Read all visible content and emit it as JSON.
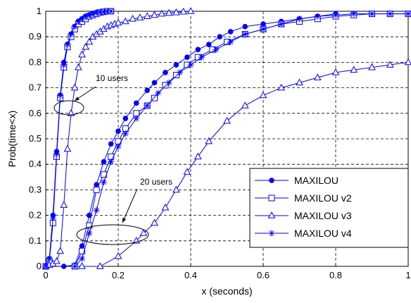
{
  "chart_data": {
    "type": "line",
    "title": "",
    "xlabel": "x (seconds)",
    "ylabel": "Prob(time<x)",
    "xlim": [
      0,
      1
    ],
    "ylim": [
      0,
      1
    ],
    "x_ticks": [
      0,
      0.2,
      0.4,
      0.6,
      0.8,
      1
    ],
    "x_tick_labels": [
      "0",
      "0.2",
      "0.4",
      "0.6",
      "0.8",
      "1"
    ],
    "y_ticks": [
      0,
      0.1,
      0.2,
      0.3,
      0.4,
      0.5,
      0.6,
      0.7,
      0.8,
      0.9,
      1
    ],
    "y_tick_labels": [
      "0",
      "0.1",
      "0.2",
      "0.3",
      "0.4",
      "0.5",
      "0.6",
      "0.7",
      "0.8",
      "0.9",
      "1"
    ],
    "grid": true,
    "legend_position": "bottom-right",
    "line_color": "#0000ff",
    "annotations": [
      {
        "text": "10 users",
        "x": 0.148,
        "y": 0.745
      },
      {
        "text": "20 users",
        "x": 0.253,
        "y": 0.325
      }
    ],
    "series": [
      {
        "name": "MAXILOU",
        "group": "10 users",
        "marker": "circle-filled",
        "x": [
          0,
          0.01,
          0.02,
          0.03,
          0.04,
          0.05,
          0.06,
          0.07,
          0.08,
          0.09,
          0.1,
          0.11,
          0.12,
          0.13,
          0.14,
          0.15,
          0.16,
          0.17,
          0.18
        ],
        "y": [
          0,
          0.03,
          0.2,
          0.45,
          0.67,
          0.8,
          0.87,
          0.91,
          0.94,
          0.96,
          0.97,
          0.98,
          0.985,
          0.99,
          0.995,
          0.997,
          0.998,
          1.0,
          1.0
        ]
      },
      {
        "name": "MAXILOU v2",
        "group": "10 users",
        "marker": "square",
        "x": [
          0,
          0.01,
          0.02,
          0.03,
          0.04,
          0.05,
          0.06,
          0.07,
          0.08,
          0.09,
          0.1,
          0.11,
          0.12,
          0.13,
          0.14,
          0.15,
          0.16,
          0.17,
          0.18
        ],
        "y": [
          0,
          0.02,
          0.17,
          0.43,
          0.66,
          0.78,
          0.86,
          0.9,
          0.93,
          0.95,
          0.96,
          0.97,
          0.98,
          0.985,
          0.99,
          0.995,
          0.998,
          1.0,
          1.0
        ]
      },
      {
        "name": "MAXILOU v3",
        "group": "10 users",
        "marker": "triangle",
        "x": [
          0,
          0.01,
          0.02,
          0.03,
          0.04,
          0.05,
          0.06,
          0.07,
          0.08,
          0.09,
          0.1,
          0.11,
          0.12,
          0.13,
          0.14,
          0.15,
          0.16,
          0.17,
          0.18,
          0.19,
          0.2,
          0.22,
          0.24,
          0.26,
          0.28,
          0.3,
          0.32,
          0.34,
          0.36,
          0.38,
          0.4
        ],
        "y": [
          0,
          0.005,
          0.01,
          0.02,
          0.06,
          0.24,
          0.46,
          0.6,
          0.7,
          0.78,
          0.83,
          0.86,
          0.88,
          0.9,
          0.91,
          0.92,
          0.93,
          0.94,
          0.945,
          0.95,
          0.955,
          0.96,
          0.97,
          0.975,
          0.98,
          0.985,
          0.99,
          0.993,
          0.995,
          0.998,
          1.0
        ]
      },
      {
        "name": "MAXILOU v4",
        "group": "10 users",
        "marker": "star",
        "x": [
          0,
          0.01,
          0.02,
          0.03,
          0.04,
          0.05,
          0.06,
          0.07,
          0.08,
          0.09,
          0.1,
          0.11,
          0.12,
          0.13,
          0.14,
          0.15,
          0.16,
          0.17,
          0.18
        ],
        "y": [
          0,
          0.03,
          0.19,
          0.44,
          0.67,
          0.79,
          0.87,
          0.91,
          0.94,
          0.96,
          0.97,
          0.98,
          0.985,
          0.99,
          0.995,
          0.997,
          0.998,
          1.0,
          1.0
        ]
      },
      {
        "name": "MAXILOU",
        "group": "20 users",
        "marker": "circle-filled",
        "x": [
          0.05,
          0.08,
          0.1,
          0.12,
          0.14,
          0.16,
          0.18,
          0.2,
          0.22,
          0.25,
          0.28,
          0.3,
          0.33,
          0.36,
          0.39,
          0.42,
          0.45,
          0.48,
          0.51,
          0.55,
          0.6,
          0.65,
          0.7,
          0.75,
          0.8
        ],
        "y": [
          0.0,
          0.005,
          0.08,
          0.2,
          0.32,
          0.41,
          0.48,
          0.53,
          0.58,
          0.64,
          0.69,
          0.72,
          0.76,
          0.79,
          0.82,
          0.85,
          0.87,
          0.9,
          0.92,
          0.94,
          0.95,
          0.96,
          0.97,
          0.98,
          0.99
        ]
      },
      {
        "name": "MAXILOU v2",
        "group": "20 users",
        "marker": "square",
        "x": [
          0.08,
          0.1,
          0.12,
          0.14,
          0.16,
          0.18,
          0.2,
          0.22,
          0.25,
          0.28,
          0.3,
          0.33,
          0.36,
          0.39,
          0.42,
          0.46,
          0.5,
          0.55,
          0.6,
          0.65,
          0.7,
          0.75,
          0.8,
          0.85,
          0.9,
          0.95,
          1.0
        ],
        "y": [
          0.0,
          0.06,
          0.16,
          0.3,
          0.36,
          0.43,
          0.49,
          0.54,
          0.6,
          0.63,
          0.66,
          0.71,
          0.75,
          0.79,
          0.82,
          0.85,
          0.88,
          0.91,
          0.93,
          0.95,
          0.96,
          0.97,
          0.98,
          0.985,
          0.99,
          0.99,
          0.99
        ]
      },
      {
        "name": "MAXILOU v3",
        "group": "20 users",
        "marker": "triangle",
        "x": [
          0.1,
          0.15,
          0.2,
          0.25,
          0.27,
          0.3,
          0.33,
          0.36,
          0.39,
          0.42,
          0.45,
          0.5,
          0.55,
          0.6,
          0.65,
          0.7,
          0.75,
          0.8,
          0.85,
          0.9,
          0.95,
          1.0
        ],
        "y": [
          0.0,
          0.0,
          0.04,
          0.1,
          0.13,
          0.17,
          0.23,
          0.3,
          0.37,
          0.43,
          0.49,
          0.57,
          0.63,
          0.67,
          0.7,
          0.72,
          0.74,
          0.76,
          0.77,
          0.78,
          0.79,
          0.8
        ]
      },
      {
        "name": "MAXILOU v4",
        "group": "20 users",
        "marker": "star",
        "x": [
          0.08,
          0.1,
          0.12,
          0.14,
          0.16,
          0.18,
          0.2,
          0.22,
          0.25,
          0.28,
          0.31,
          0.34,
          0.37,
          0.4,
          0.43,
          0.47,
          0.51,
          0.55,
          0.6,
          0.65,
          0.7,
          0.75,
          0.8,
          0.85,
          0.9,
          0.95,
          1.0
        ],
        "y": [
          0.0,
          0.03,
          0.13,
          0.22,
          0.33,
          0.41,
          0.47,
          0.52,
          0.58,
          0.63,
          0.68,
          0.72,
          0.76,
          0.79,
          0.82,
          0.85,
          0.88,
          0.91,
          0.93,
          0.95,
          0.97,
          0.98,
          0.985,
          0.99,
          0.99,
          0.99,
          0.99
        ]
      }
    ],
    "legend": [
      {
        "label": "MAXILOU",
        "marker": "circle-filled"
      },
      {
        "label": "MAXILOU v2",
        "marker": "square"
      },
      {
        "label": "MAXILOU v3",
        "marker": "triangle"
      },
      {
        "label": "MAXILOU v4",
        "marker": "star"
      }
    ]
  }
}
